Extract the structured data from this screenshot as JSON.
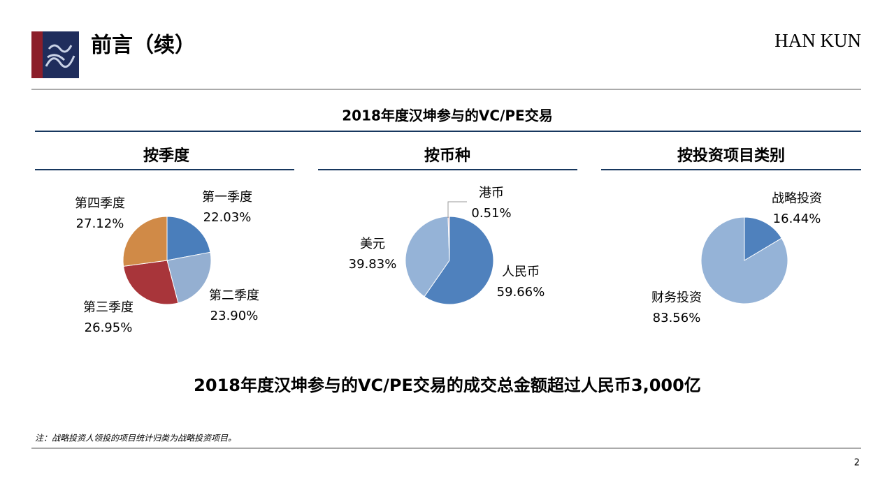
{
  "header": {
    "title": "前言（续）",
    "brand": "HAN KUN"
  },
  "section_title": "2018年度汉坤参与的VC/PE交易",
  "chart_data": [
    {
      "type": "pie",
      "title": "按季度",
      "categories": [
        "第一季度",
        "第二季度",
        "第三季度",
        "第四季度"
      ],
      "values": [
        22.03,
        23.9,
        26.95,
        27.12
      ],
      "value_labels": [
        "22.03%",
        "23.90%",
        "26.95%",
        "27.12%"
      ],
      "colors": [
        "#4a7ebb",
        "#94afd1",
        "#a8353a",
        "#d08a47"
      ]
    },
    {
      "type": "pie",
      "title": "按币种",
      "categories": [
        "人民币",
        "美元",
        "港币"
      ],
      "values": [
        59.66,
        39.83,
        0.51
      ],
      "value_labels": [
        "59.66%",
        "39.83%",
        "0.51%"
      ],
      "colors": [
        "#4f81bd",
        "#95b3d7",
        "#e6b9b8"
      ]
    },
    {
      "type": "pie",
      "title": "按投资项目类别",
      "categories": [
        "战略投资",
        "财务投资"
      ],
      "values": [
        16.44,
        83.56
      ],
      "value_labels": [
        "16.44%",
        "83.56%"
      ],
      "colors": [
        "#4f81bd",
        "#95b3d7"
      ]
    }
  ],
  "summary": {
    "text": "2018年度汉坤参与的VC/PE交易的成交总金额超过人民币",
    "amount": "3,000亿"
  },
  "note": "注：战略投资人领投的项目统计归类为战略投资项目。",
  "page_number": "2"
}
